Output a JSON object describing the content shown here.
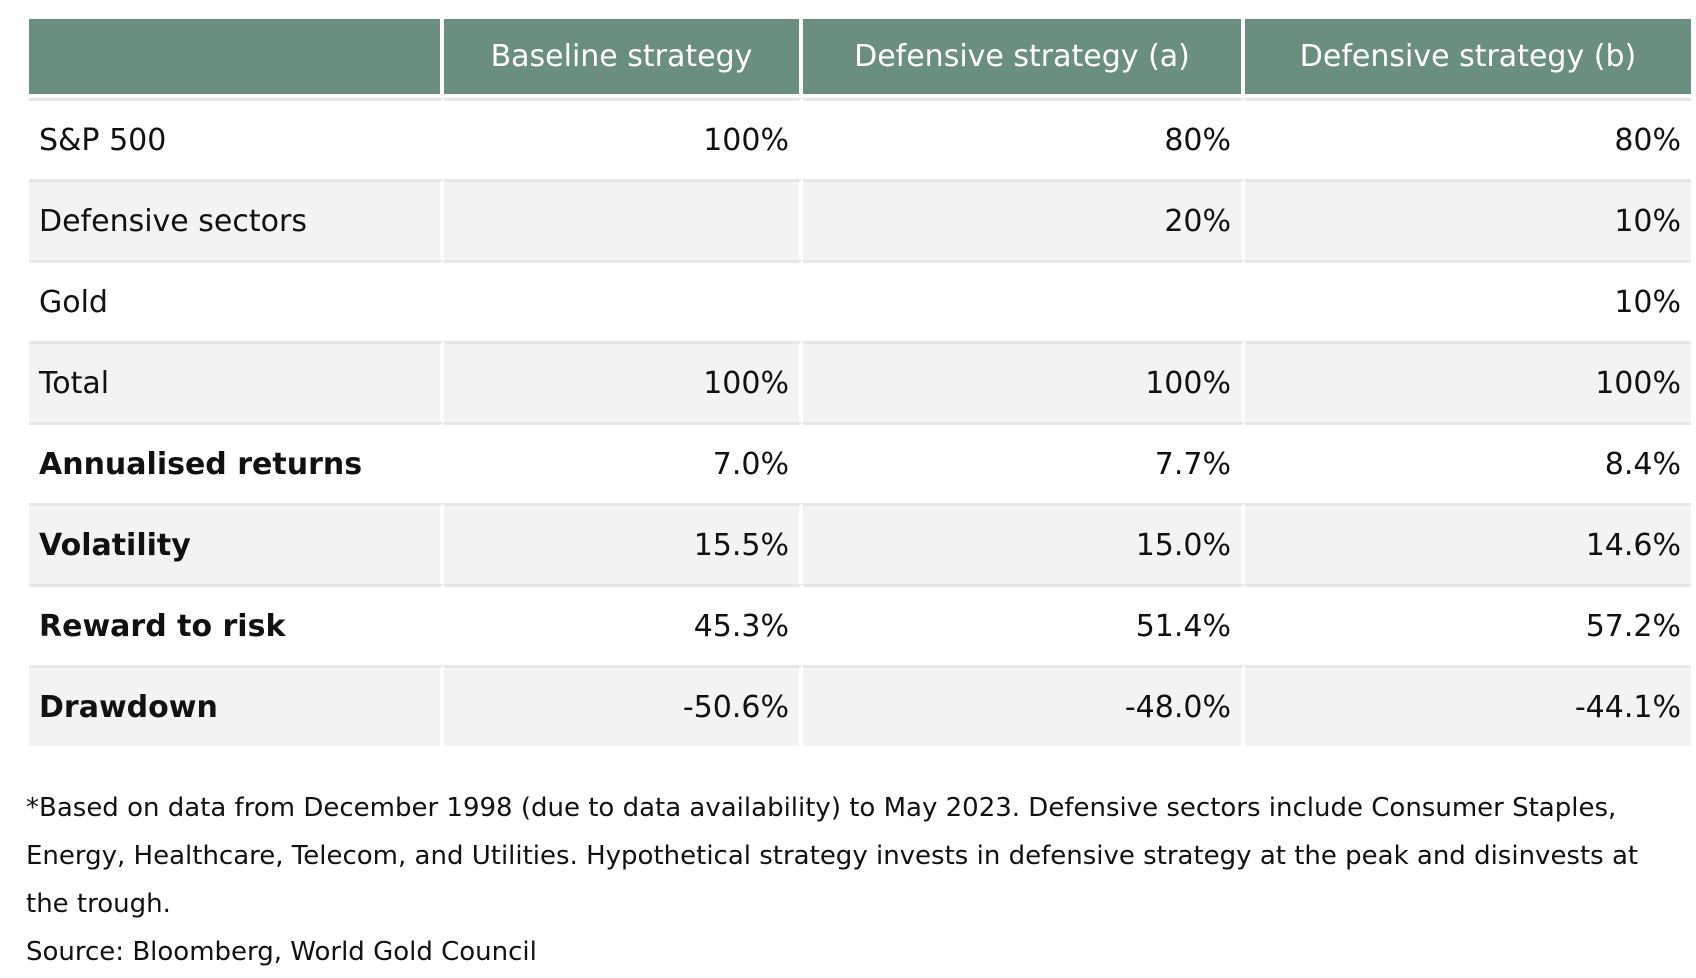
{
  "table": {
    "headers": [
      "",
      "Baseline strategy",
      "Defensive strategy (a)",
      "Defensive strategy (b)"
    ],
    "rows": [
      {
        "label": "S&P 500",
        "values": [
          "100%",
          "80%",
          "80%"
        ],
        "bold": false
      },
      {
        "label": "Defensive sectors",
        "values": [
          "",
          "20%",
          "10%"
        ],
        "bold": false
      },
      {
        "label": "Gold",
        "values": [
          "",
          "",
          "10%"
        ],
        "bold": false
      },
      {
        "label": "Total",
        "values": [
          "100%",
          "100%",
          "100%"
        ],
        "bold": false
      },
      {
        "label": "Annualised returns",
        "values": [
          "7.0%",
          "7.7%",
          "8.4%"
        ],
        "bold": true
      },
      {
        "label": "Volatility",
        "values": [
          "15.5%",
          "15.0%",
          "14.6%"
        ],
        "bold": true
      },
      {
        "label": "Reward to risk",
        "values": [
          "45.3%",
          "51.4%",
          "57.2%"
        ],
        "bold": true
      },
      {
        "label": "Drawdown",
        "values": [
          "-50.6%",
          "-48.0%",
          "-44.1%"
        ],
        "bold": true
      }
    ]
  },
  "footnote": {
    "note": "*Based on data from December 1998 (due to data availability) to May 2023. Defensive sectors include Consumer Staples, Energy, Healthcare, Telecom, and Utilities. Hypothetical strategy invests in defensive strategy at the peak and disinvests at the trough.",
    "source": "Source: Bloomberg, World Gold Council"
  },
  "colors": {
    "header_bg": "#6b8f7f",
    "shaded_row_bg": "#f3f3f3"
  }
}
